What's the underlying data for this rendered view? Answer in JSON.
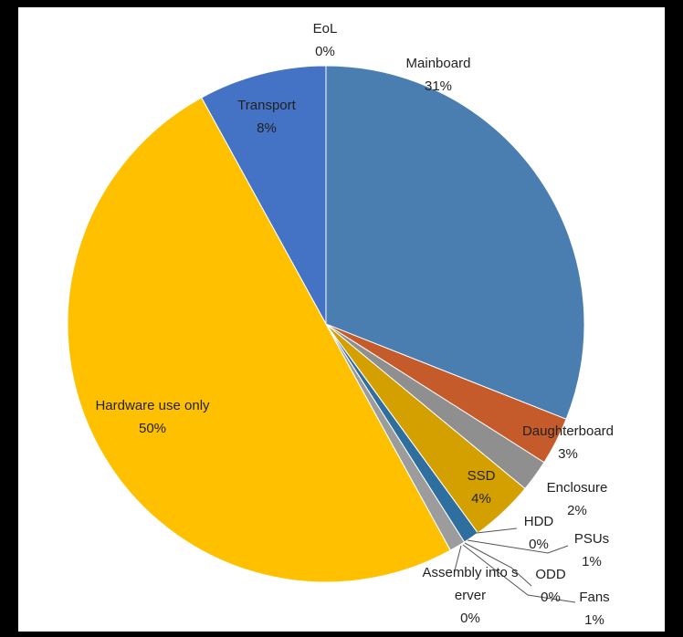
{
  "chart_data": {
    "type": "pie",
    "categories": [
      "Mainboard",
      "Daughterboard",
      "Enclosure",
      "SSD",
      "HDD",
      "PSUs",
      "ODD",
      "Fans",
      "Assembly into server",
      "Hardware use only",
      "Transport",
      "EoL"
    ],
    "values": [
      31,
      3,
      2,
      4,
      0,
      1,
      0,
      1,
      0,
      50,
      8,
      0
    ],
    "value_labels": [
      "31%",
      "3%",
      "2%",
      "4%",
      "0%",
      "1%",
      "0%",
      "1%",
      "0%",
      "50%",
      "8%",
      "0%"
    ],
    "colors": [
      "#4a7eb0",
      "#c55a2a",
      "#8f8f8f",
      "#d4a000",
      "#3f8f3f",
      "#2f6f9f",
      "#6a9a4a",
      "#9c9c9c",
      "#7fa8d8",
      "#ffc000",
      "#4472c4",
      "#5b9bd5"
    ]
  }
}
